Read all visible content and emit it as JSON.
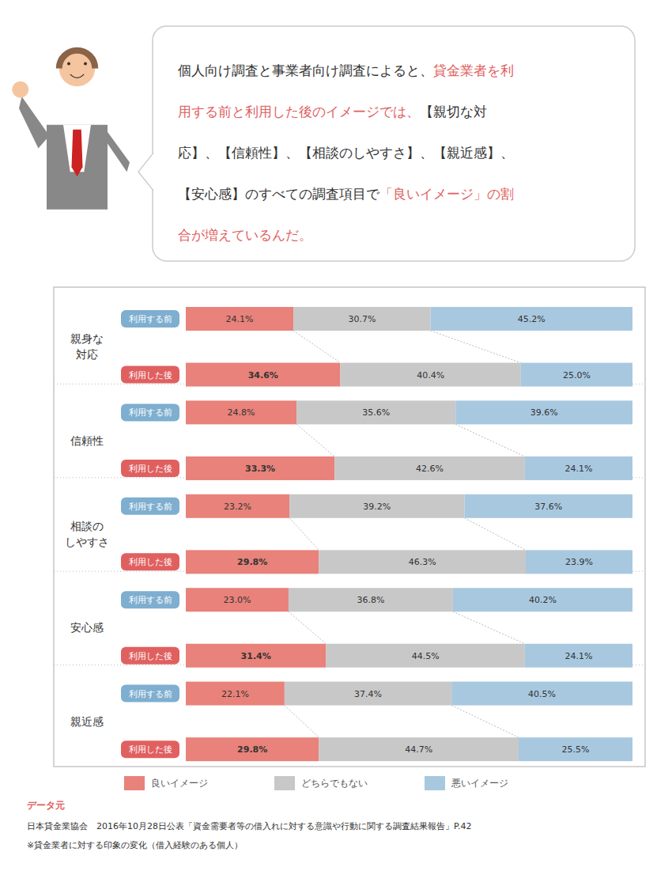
{
  "chart_data": {
    "type": "bar",
    "orientation": "horizontal",
    "stacked": true,
    "data_labels": true,
    "grid": false,
    "legend": "bottom",
    "tick_labels": "y",
    "xlim": [
      0,
      100
    ],
    "groups": [
      "親身な\n対応",
      "信頼性",
      "相談の\nしやすさ",
      "安心感",
      "親近感"
    ],
    "categories": [
      "利用する前",
      "利用した後",
      "利用する前",
      "利用した後",
      "利用する前",
      "利用した後",
      "利用する前",
      "利用した後",
      "利用する前",
      "利用した後"
    ],
    "category_colors": [
      "#7EAED0",
      "#E06060",
      "#7EAED0",
      "#E06060",
      "#7EAED0",
      "#E06060",
      "#7EAED0",
      "#E06060",
      "#7EAED0",
      "#E06060"
    ],
    "series": [
      {
        "name": "良いイメージ",
        "color": "#E8827A",
        "values": [
          24.1,
          34.6,
          24.8,
          33.3,
          23.2,
          29.8,
          23.0,
          31.4,
          22.1,
          29.8
        ],
        "value_labels": [
          "24.1%",
          "34.6%",
          "24.8%",
          "33.3%",
          "23.2%",
          "29.8%",
          "23.0%",
          "31.4%",
          "22.1%",
          "29.8%"
        ]
      },
      {
        "name": "どちらでもない",
        "color": "#C8C8C8",
        "values": [
          30.7,
          40.4,
          35.6,
          42.6,
          39.2,
          46.3,
          36.8,
          44.5,
          37.4,
          44.7
        ],
        "value_labels": [
          "30.7%",
          "40.4%",
          "35.6%",
          "42.6%",
          "39.2%",
          "46.3%",
          "36.8%",
          "44.5%",
          "37.4%",
          "44.7%"
        ]
      },
      {
        "name": "悪いイメージ",
        "color": "#A8C8E0",
        "values": [
          45.2,
          25.0,
          39.6,
          24.1,
          37.6,
          23.9,
          40.2,
          24.1,
          40.5,
          25.5
        ],
        "value_labels": [
          "45.2%",
          "25.0%",
          "39.6%",
          "24.1%",
          "37.6%",
          "23.9%",
          "40.2%",
          "24.1%",
          "40.5%",
          "25.5%"
        ]
      }
    ],
    "annotations": [
      [
        {
          "text": "個人向け調査と事業者向け調査によると、",
          "color": "#333333"
        },
        {
          "text": "貸金業者を利",
          "color": "#E06060"
        }
      ],
      [
        {
          "text": "用する前と利用した後のイメージでは、",
          "color": "#E06060"
        },
        {
          "text": "【親切な対",
          "color": "#333333"
        }
      ],
      [
        {
          "text": "応】、【信頼性】、【相談のしやすさ】、【親近感】、",
          "color": "#333333"
        }
      ],
      [
        {
          "text": "【安心感】のすべての調査項目で",
          "color": "#333333"
        },
        {
          "text": "「良いイメージ」の割",
          "color": "#E06060"
        }
      ],
      [
        {
          "text": "合が増えているんだ。",
          "color": "#E06060"
        }
      ]
    ],
    "source": [
      {
        "text": "データ元",
        "color": "#E06060"
      },
      {
        "text": "日本貸金業協会　2016年10月28日公表「資金需要者等の借入れに対する意識や行動に関する調査結果報告」P.42",
        "color": "#333333"
      },
      {
        "text": "※貸金業者に対する印象の変化（借入経験のある個人）",
        "color": "#333333"
      }
    ]
  }
}
